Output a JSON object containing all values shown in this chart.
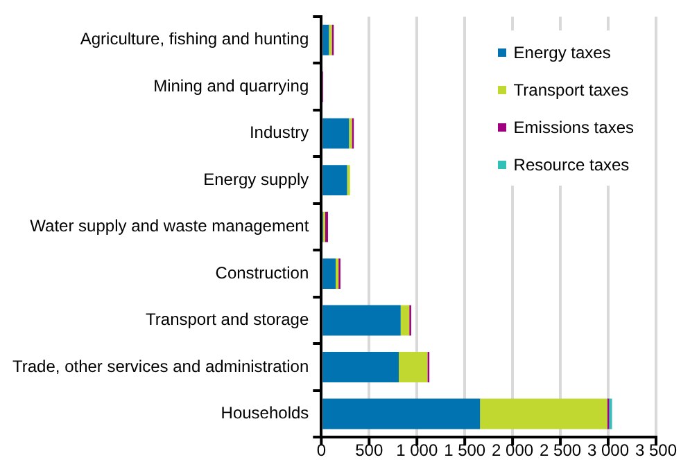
{
  "chart_data": {
    "type": "bar",
    "orientation": "horizontal",
    "stacked": true,
    "categories": [
      "Agriculture, fishing and hunting",
      "Mining and quarrying",
      "Industry",
      "Energy supply",
      "Water supply and waste management",
      "Construction",
      "Transport and storage",
      "Trade, other services and administration",
      "Households"
    ],
    "series": [
      {
        "name": "Energy taxes",
        "color": "#0073b0",
        "values": [
          80,
          0,
          290,
          270,
          20,
          150,
          830,
          810,
          1660
        ]
      },
      {
        "name": "Transport taxes",
        "color": "#c0d830",
        "values": [
          30,
          0,
          30,
          30,
          20,
          30,
          90,
          300,
          1330
        ]
      },
      {
        "name": "Emissions taxes",
        "color": "#a0007e",
        "values": [
          20,
          20,
          20,
          0,
          30,
          20,
          20,
          20,
          20
        ]
      },
      {
        "name": "Resource taxes",
        "color": "#30c0b8",
        "values": [
          0,
          0,
          0,
          0,
          0,
          0,
          0,
          0,
          30
        ]
      }
    ],
    "xlim": [
      0,
      3500
    ],
    "xticks": [
      0,
      {
        "value": 500,
        "label": "500"
      },
      {
        "value": 1000,
        "label": "1 000"
      },
      {
        "value": 1500,
        "label": "1 500"
      },
      {
        "value": 2000,
        "label": "2 000"
      },
      {
        "value": 2500,
        "label": "2 500"
      },
      {
        "value": 3000,
        "label": "3 000"
      },
      {
        "value": 3500,
        "label": "3 500"
      }
    ],
    "grid": "x",
    "legend": "top right"
  }
}
